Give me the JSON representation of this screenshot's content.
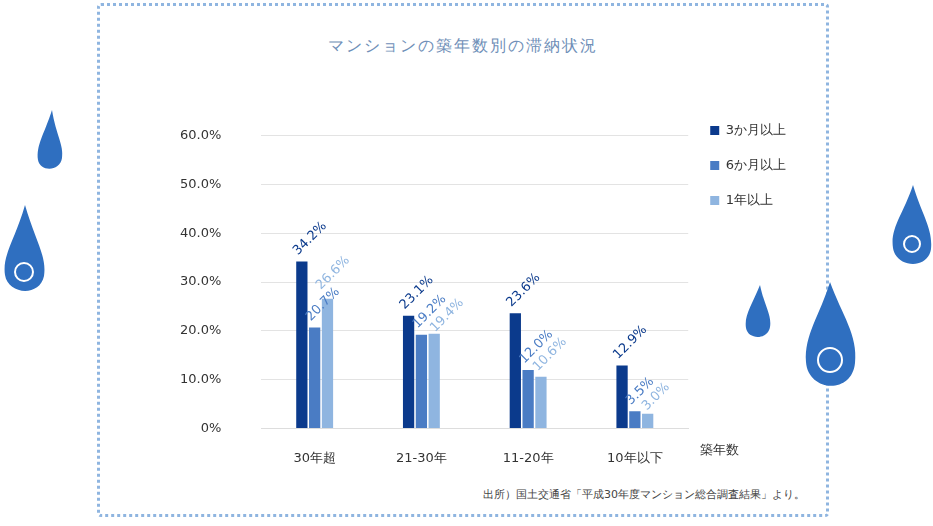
{
  "chart_data": {
    "type": "bar",
    "title": "マンションの築年数別の滞納状況",
    "x_label": "築年数",
    "source": "出所）国土交通省「平成30年度マンション総合調査結果」より。",
    "categories": [
      "30年超",
      "21-30年",
      "11-20年",
      "10年以下"
    ],
    "series": [
      {
        "name": "3か月以上",
        "color": "#0b3a8c",
        "values": [
          34.2,
          23.1,
          23.6,
          12.9
        ],
        "value_labels": [
          "34.2%",
          "23.1%",
          "23.6%",
          "12.9%"
        ]
      },
      {
        "name": "6か月以上",
        "color": "#4a7cc4",
        "values": [
          20.7,
          19.2,
          12.0,
          3.5
        ],
        "value_labels": [
          "20.7%",
          "19.2%",
          "12.0%",
          "3.5%"
        ]
      },
      {
        "name": "1年以上",
        "color": "#8fb5e0",
        "values": [
          26.6,
          19.4,
          10.6,
          3.0
        ],
        "value_labels": [
          "26.6%",
          "19.4%",
          "10.6%",
          "3.0%"
        ]
      }
    ],
    "ylim": [
      0,
      60
    ],
    "yticks": [
      {
        "value": 0,
        "label": "0%"
      },
      {
        "value": 10,
        "label": "10.0%"
      },
      {
        "value": 20,
        "label": "20.0%"
      },
      {
        "value": 30,
        "label": "30.0%"
      },
      {
        "value": 40,
        "label": "40.0%"
      },
      {
        "value": 50,
        "label": "50.0%"
      },
      {
        "value": 60,
        "label": "60.0%"
      }
    ],
    "grid": true,
    "legend": "top-right",
    "data_labels": true
  }
}
